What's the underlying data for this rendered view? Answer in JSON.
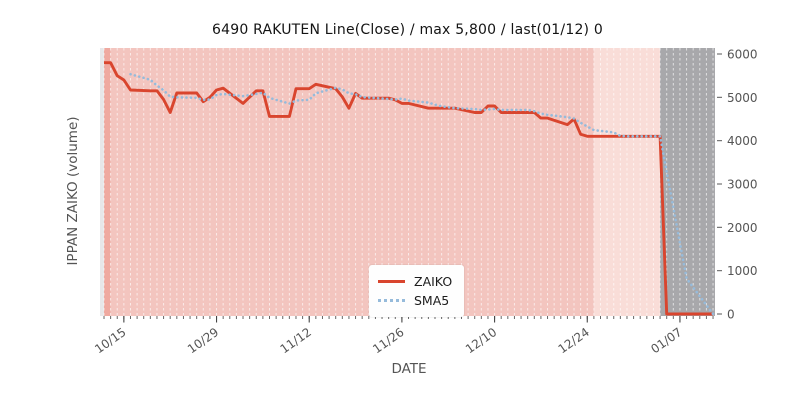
{
  "figure": {
    "title": "6490 RAKUTEN Line(Close) / max 5,800 / last(01/12) 0"
  },
  "legend": {
    "items": [
      {
        "label": "ZAIKO"
      },
      {
        "label": "SMA5"
      }
    ]
  },
  "colors": {
    "zaiko": "#d9452e",
    "sma5": "#96bbdb",
    "plot_bg": "#e7e7e9",
    "band_dark": "#efa9a0",
    "band_main": "#f3c5bf",
    "band_light": "#f9ddd8",
    "band_gray": "#a8a8ab",
    "grid": "#ffffff",
    "tick_text": "#555555",
    "title_text": "#141414"
  },
  "chart_data": {
    "type": "line",
    "title": "6490 RAKUTEN Line(Close) / max 5,800 / last(01/12) 0",
    "xlabel": "DATE",
    "ylabel": "IPPAN ZAIKO (volume)",
    "ylim": [
      0,
      6000
    ],
    "y_ticks": [
      0,
      1000,
      2000,
      3000,
      4000,
      5000,
      6000
    ],
    "x_ticks": [
      "10/15",
      "10/29",
      "11/12",
      "11/26",
      "12/10",
      "12/24",
      "01/07"
    ],
    "grid": "vertical daily dashed white",
    "legend_position": "lower center",
    "max": 5800,
    "last_date": "01/12",
    "last_value": 0,
    "dates": [
      "10/12",
      "10/13",
      "10/14",
      "10/15",
      "10/16",
      "10/19",
      "10/20",
      "10/21",
      "10/22",
      "10/23",
      "10/26",
      "10/27",
      "10/28",
      "10/29",
      "10/30",
      "11/02",
      "11/04",
      "11/05",
      "11/06",
      "11/09",
      "11/10",
      "11/11",
      "11/12",
      "11/13",
      "11/16",
      "11/17",
      "11/18",
      "11/19",
      "11/20",
      "11/24",
      "11/25",
      "11/26",
      "11/27",
      "11/30",
      "12/01",
      "12/02",
      "12/03",
      "12/04",
      "12/07",
      "12/08",
      "12/09",
      "12/10",
      "12/11",
      "12/14",
      "12/15",
      "12/16",
      "12/17",
      "12/18",
      "12/21",
      "12/22",
      "12/23",
      "12/24",
      "12/25",
      "12/28",
      "12/29",
      "12/30",
      "01/04",
      "01/05",
      "01/06",
      "01/07",
      "01/08",
      "01/12"
    ],
    "series": [
      {
        "name": "ZAIKO",
        "style": "solid",
        "color": "#d9452e",
        "start_index": 0,
        "values": [
          5800,
          5800,
          5500,
          5400,
          5170,
          5150,
          5150,
          4950,
          4650,
          5100,
          5100,
          4900,
          5000,
          5170,
          5210,
          4860,
          5150,
          5150,
          4560,
          4560,
          5200,
          5200,
          5200,
          5300,
          5200,
          5010,
          4750,
          5090,
          4980,
          4980,
          4940,
          4860,
          4860,
          4750,
          4750,
          4750,
          4750,
          4750,
          4650,
          4650,
          4800,
          4800,
          4650,
          4650,
          4650,
          4650,
          4520,
          4520,
          4370,
          4500,
          4150,
          4100,
          4100,
          4100,
          4100,
          4100,
          4100,
          0,
          0,
          0,
          0,
          0
        ]
      },
      {
        "name": "SMA5",
        "style": "dotted",
        "color": "#96bbdb",
        "start_index": 4,
        "values": [
          5534,
          5404,
          5274,
          5164,
          5014,
          5000,
          4990,
          4940,
          4950,
          5054,
          5076,
          5028,
          5078,
          5108,
          4986,
          4856,
          4924,
          4934,
          4944,
          5092,
          5220,
          5182,
          5092,
          5070,
          5006,
          4962,
          4948,
          4970,
          4924,
          4878,
          4832,
          4794,
          4772,
          4750,
          4730,
          4710,
          4720,
          4730,
          4710,
          4710,
          4710,
          4680,
          4624,
          4598,
          4542,
          4512,
          4412,
          4328,
          4244,
          4190,
          4110,
          4100,
          4100,
          3280,
          2460,
          1640,
          820,
          0
        ]
      }
    ],
    "background_bands": [
      {
        "from": "10/12",
        "to": "10/13",
        "color": "#efa9a0"
      },
      {
        "from": "10/13",
        "to": "12/25",
        "color": "#f3c5bf"
      },
      {
        "from": "12/25",
        "to": "01/04",
        "color": "#f9ddd8"
      },
      {
        "from": "01/04",
        "to": "end",
        "color": "#a8a8ab"
      }
    ]
  }
}
